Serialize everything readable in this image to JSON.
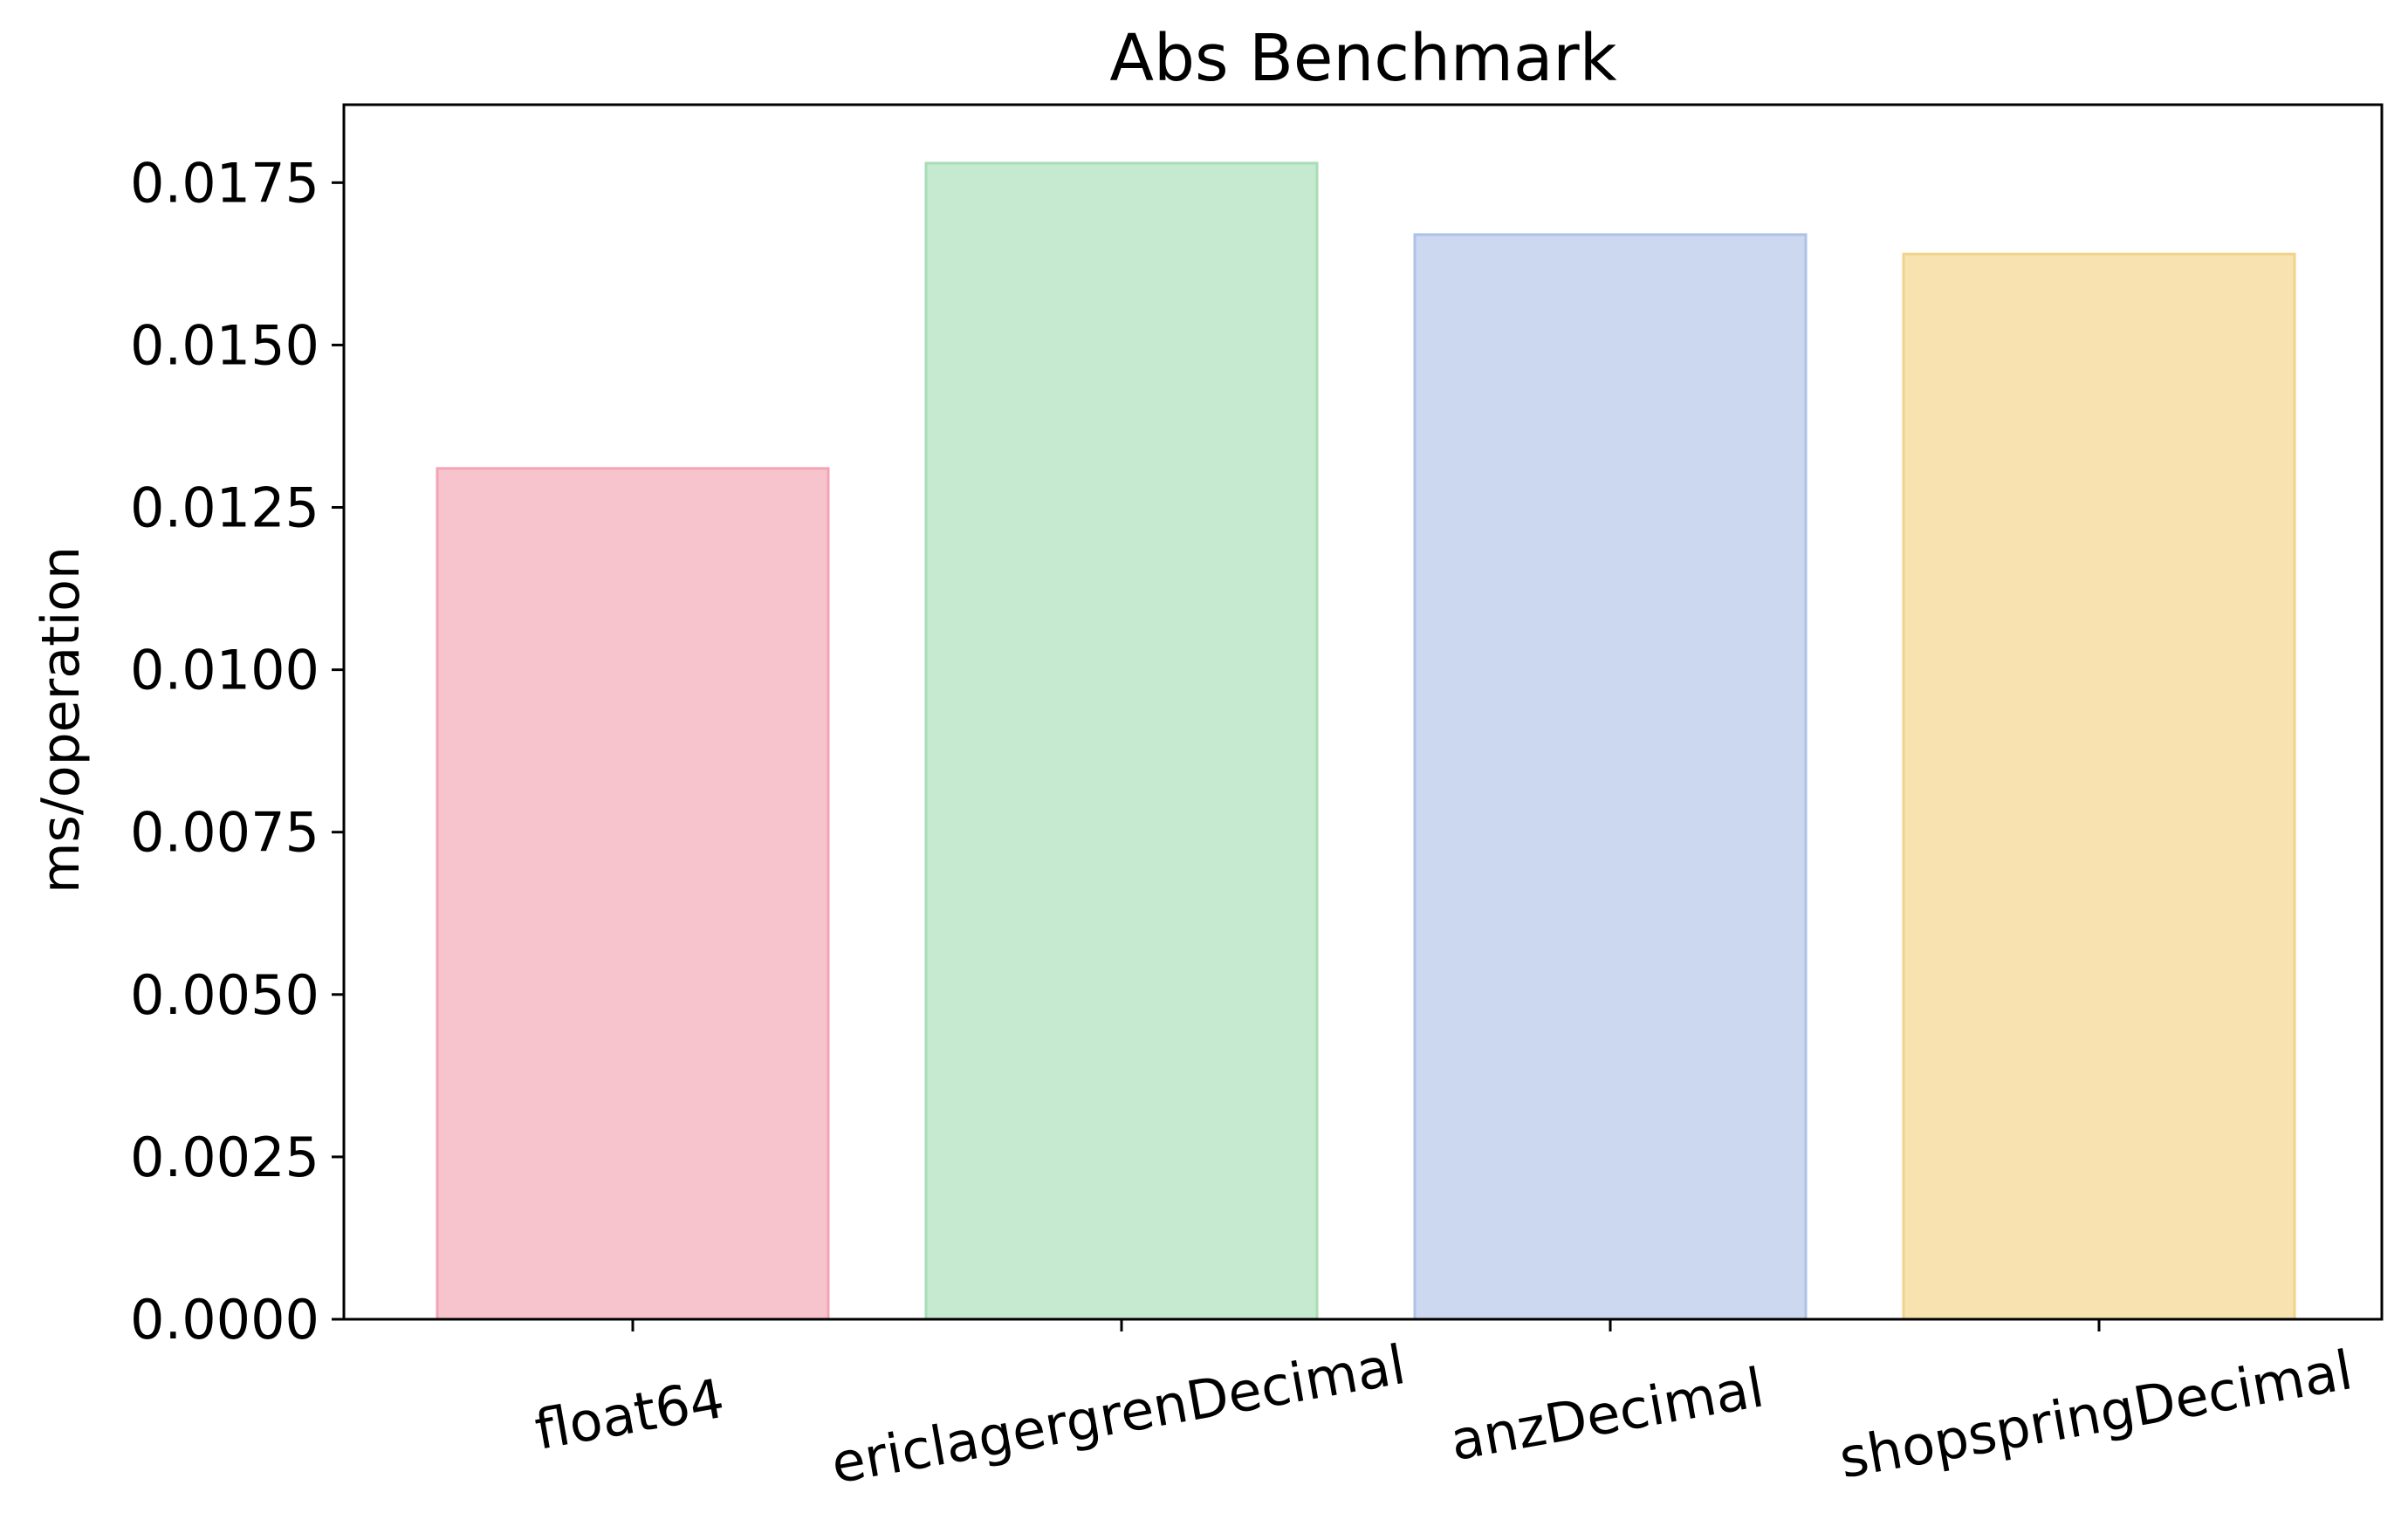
{
  "chart_data": {
    "type": "bar",
    "title": "Abs Benchmark",
    "xlabel": "",
    "ylabel": "ms/operation",
    "categories": [
      "float64",
      "ericlagergrenDecimal",
      "anzDecimal",
      "shopspringDecimal"
    ],
    "values": [
      0.0131,
      0.0178,
      0.0167,
      0.0164
    ],
    "ylim": [
      0,
      0.0187
    ],
    "yticks": [
      0.0,
      0.0025,
      0.005,
      0.0075,
      0.01,
      0.0125,
      0.015,
      0.0175
    ],
    "ytick_labels": [
      "0.0000",
      "0.0025",
      "0.0050",
      "0.0075",
      "0.0100",
      "0.0125",
      "0.0150",
      "0.0175"
    ],
    "grid": false,
    "legend": "none",
    "xtick_rotation_deg": -10,
    "colors": {
      "fills": [
        "#f7c4ce",
        "#c5ead0",
        "#ccd8f0",
        "#f7e2b0"
      ],
      "edges": [
        "#f2a4b4",
        "#a8ddb6",
        "#aec1e6",
        "#f1d38a"
      ]
    }
  }
}
